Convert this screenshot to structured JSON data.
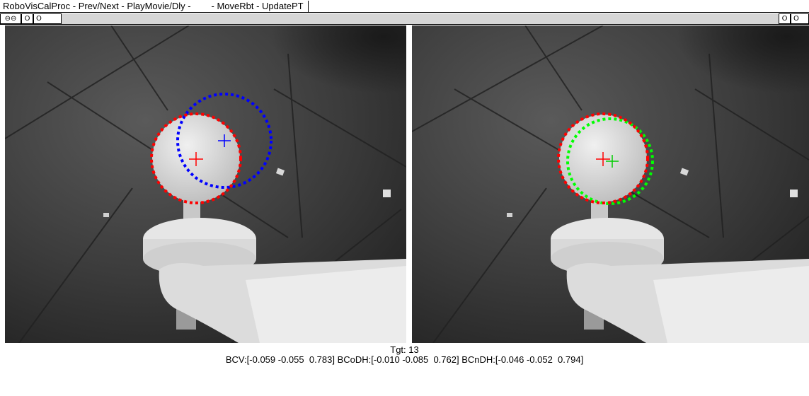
{
  "window": {
    "title": "RoboVisCalProc - Prev/Next - PlayMovie/Dly -        - MoveRbt - UpdatePT"
  },
  "toolbar": {
    "left_buttons": [
      {
        "icon": "link-icon",
        "glyph": "⊖⊖"
      },
      {
        "icon": "circle-icon",
        "glyph": "O"
      },
      {
        "icon": "circle-icon",
        "glyph": "O"
      }
    ],
    "right_buttons": [
      {
        "icon": "circle-icon",
        "glyph": "O"
      },
      {
        "icon": "circle-icon",
        "glyph": "O"
      }
    ]
  },
  "colors": {
    "detected_circle": "#ff0000",
    "left_estimate_circle": "#0000ff",
    "right_estimate_circle": "#00ff00"
  },
  "status": {
    "target_line": "Tgt: 13",
    "coords_line": "BCV:[-0.059 -0.055  0.783] BCoDH:[-0.010 -0.085  0.762] BCnDH:[-0.046 -0.052  0.794]"
  }
}
